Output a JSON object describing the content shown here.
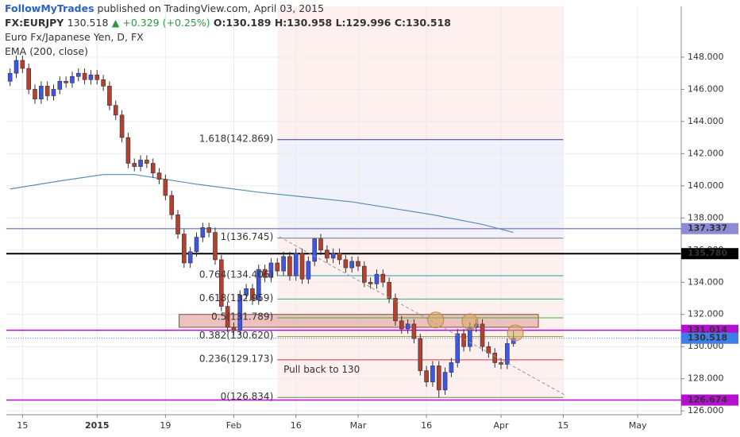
{
  "header": {
    "author": "FollowMyTrades",
    "published": "published on TradingView.com, April 03, 2015"
  },
  "quote": {
    "symbol": "FX:EURJPY",
    "price": "130.518",
    "change": "▲ +0.329 (+0.25%)",
    "open": "O:130.189",
    "high": "H:130.958",
    "low": "L:129.996",
    "close": "C:130.518"
  },
  "chart_data": {
    "type": "candlestick",
    "title": "Euro Fx/Japanese Yen, D, FX",
    "up_color": "#3f55e6",
    "down_color": "#b5402f",
    "open": [
      146.5,
      147.0,
      147.8,
      147.3,
      146.0,
      145.4,
      146.2,
      145.6,
      146.0,
      146.5,
      146.4,
      146.8,
      147.0,
      146.6,
      146.9,
      146.6,
      146.2,
      145.0,
      144.4,
      143.0,
      141.4,
      141.2,
      141.6,
      141.4,
      140.8,
      140.4,
      139.4,
      138.2,
      137.0,
      135.2,
      135.9,
      136.8,
      137.4,
      137.1,
      135.4,
      132.5,
      131.2,
      131.0,
      133.2,
      133.6,
      132.9,
      134.8,
      134.3,
      135.2,
      134.7,
      135.6,
      134.4,
      135.8,
      134.2,
      135.3,
      136.7,
      136.0,
      135.5,
      135.8,
      135.4,
      134.9,
      135.3,
      135.0,
      134.0,
      133.9,
      134.5,
      134.0,
      133.0,
      131.6,
      131.1,
      131.4,
      130.5,
      128.5,
      127.8,
      128.8,
      127.3,
      128.4,
      129.0,
      130.8,
      130.0,
      131.2,
      131.4,
      130.0,
      129.6,
      129.0,
      128.9,
      130.189
    ],
    "high": [
      147.3,
      148.1,
      148.1,
      147.6,
      146.3,
      146.5,
      146.5,
      146.3,
      146.8,
      146.8,
      147.1,
      147.3,
      147.3,
      147.2,
      147.2,
      146.9,
      146.5,
      145.3,
      144.7,
      143.3,
      141.7,
      141.9,
      141.9,
      141.7,
      141.1,
      140.7,
      139.7,
      138.5,
      137.3,
      136.2,
      137.1,
      137.7,
      137.7,
      137.4,
      135.7,
      132.8,
      131.5,
      133.5,
      133.9,
      133.9,
      135.1,
      135.1,
      135.5,
      135.5,
      135.9,
      135.9,
      136.1,
      136.1,
      135.6,
      136.745,
      137.0,
      136.3,
      136.1,
      136.1,
      135.7,
      135.6,
      135.6,
      135.3,
      134.3,
      134.8,
      134.8,
      134.3,
      133.3,
      131.9,
      131.7,
      131.7,
      130.8,
      128.8,
      129.1,
      129.1,
      128.7,
      129.3,
      131.1,
      131.1,
      131.5,
      131.7,
      131.7,
      130.3,
      129.9,
      129.3,
      130.5,
      130.958
    ],
    "low": [
      146.2,
      146.7,
      147.0,
      145.7,
      145.1,
      145.1,
      145.3,
      145.3,
      145.7,
      146.1,
      146.1,
      146.5,
      146.3,
      146.3,
      146.3,
      145.9,
      144.7,
      144.1,
      142.7,
      141.1,
      140.9,
      140.9,
      141.1,
      140.5,
      140.1,
      139.1,
      137.9,
      136.7,
      134.9,
      134.9,
      135.6,
      136.5,
      136.8,
      135.1,
      132.2,
      130.9,
      130.7,
      130.7,
      132.9,
      132.6,
      132.6,
      134.0,
      134.0,
      134.4,
      134.4,
      134.1,
      134.1,
      133.9,
      133.9,
      135.0,
      135.7,
      135.2,
      135.2,
      135.1,
      134.6,
      134.6,
      134.7,
      133.7,
      133.6,
      133.6,
      133.7,
      132.7,
      131.3,
      130.8,
      130.8,
      130.2,
      128.2,
      127.5,
      127.5,
      126.834,
      127.0,
      128.1,
      128.7,
      129.7,
      129.7,
      130.9,
      129.7,
      129.3,
      128.7,
      128.6,
      128.6,
      129.996
    ],
    "close": [
      147.0,
      147.8,
      147.3,
      146.0,
      145.4,
      146.2,
      145.6,
      146.0,
      146.5,
      146.4,
      146.8,
      147.0,
      146.6,
      146.9,
      146.6,
      146.2,
      145.0,
      144.4,
      143.0,
      141.4,
      141.2,
      141.6,
      141.4,
      140.8,
      140.4,
      139.4,
      138.2,
      137.0,
      135.2,
      135.9,
      136.8,
      137.4,
      137.1,
      135.4,
      132.5,
      131.2,
      131.0,
      133.2,
      133.6,
      132.9,
      134.8,
      134.3,
      135.2,
      134.7,
      135.6,
      134.4,
      135.8,
      134.2,
      135.3,
      136.7,
      136.0,
      135.5,
      135.8,
      135.4,
      134.9,
      135.3,
      135.0,
      134.0,
      133.9,
      134.5,
      134.0,
      133.0,
      131.6,
      131.1,
      131.4,
      130.5,
      128.5,
      127.8,
      128.8,
      127.3,
      128.4,
      129.0,
      130.8,
      130.0,
      131.2,
      131.4,
      130.0,
      129.6,
      129.0,
      128.9,
      130.189,
      130.518
    ],
    "ema": {
      "name": "EMA (200, close)",
      "color": "#5b8fb5",
      "x": [
        0,
        8,
        15,
        20,
        30,
        40,
        55,
        68,
        76,
        81
      ],
      "values": [
        139.8,
        140.3,
        140.7,
        140.7,
        140.1,
        139.6,
        139.0,
        138.2,
        137.6,
        137.1
      ]
    },
    "xlim": [
      -0.6,
      108
    ],
    "xticks": [
      {
        "value": 2,
        "label": "15"
      },
      {
        "value": 14,
        "label": "2015"
      },
      {
        "value": 25,
        "label": "19"
      },
      {
        "value": 36,
        "label": "Feb"
      },
      {
        "value": 46,
        "label": "16"
      },
      {
        "value": 56,
        "label": "Mar"
      },
      {
        "value": 67,
        "label": "16"
      },
      {
        "value": 79,
        "label": "Apr"
      },
      {
        "value": 89,
        "label": "15"
      },
      {
        "value": 101,
        "label": "May"
      }
    ],
    "ylim": [
      125.76,
      151.16
    ],
    "yticks": [
      {
        "value": 126,
        "label": "126.000"
      },
      {
        "value": 128,
        "label": "128.000"
      },
      {
        "value": 130,
        "label": "130.000"
      },
      {
        "value": 132,
        "label": "132.000"
      },
      {
        "value": 134,
        "label": "134.000"
      },
      {
        "value": 136,
        "label": "136.000"
      },
      {
        "value": 138,
        "label": "138.000"
      },
      {
        "value": 140,
        "label": "140.000"
      },
      {
        "value": 142,
        "label": "142.000"
      },
      {
        "value": 144,
        "label": "144.000"
      },
      {
        "value": 146,
        "label": "146.000"
      },
      {
        "value": 148,
        "label": "148.000"
      }
    ],
    "grid": true,
    "levels": [
      {
        "value": 137.337,
        "label": "137.337",
        "color": "#8b8bd6"
      },
      {
        "value": 135.78,
        "label": "135.780",
        "color": "#000000"
      },
      {
        "value": 131.014,
        "label": "131.014",
        "color": "#b50fd0"
      },
      {
        "value": 130.518,
        "label": "130.518",
        "color": "#3d7ee8"
      },
      {
        "value": 126.674,
        "label": "126.674",
        "color": "#b50fd0"
      }
    ],
    "fib": [
      {
        "value": 142.869,
        "label": "1.618(142.869)",
        "color": "#2d3a9e"
      },
      {
        "value": 136.745,
        "label": "1(136.745)",
        "color": "#777777"
      },
      {
        "value": 134.406,
        "label": "0.764(134.406)",
        "color": "#2a9bb0"
      },
      {
        "value": 132.959,
        "label": "0.618(132.959)",
        "color": "#2eb872"
      },
      {
        "value": 131.789,
        "label": "0.5(131.789)",
        "color": "#38b838"
      },
      {
        "value": 130.62,
        "label": "0.382(130.620)",
        "color": "#8a9b2c"
      },
      {
        "value": 129.173,
        "label": "0.236(129.173)",
        "color": "#c23b3b"
      },
      {
        "value": 126.834,
        "label": "0(126.834)",
        "color": "#777777"
      }
    ],
    "zone": [
      131.2,
      132.0
    ],
    "annotation": "Pull back to 130"
  }
}
